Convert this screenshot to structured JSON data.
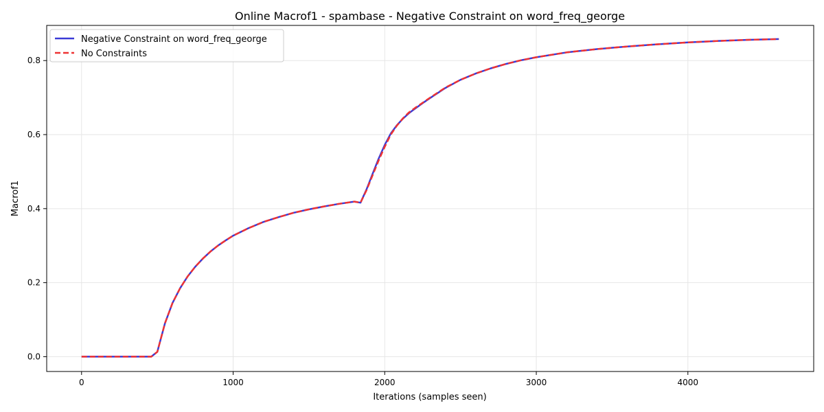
{
  "chart_data": {
    "type": "line",
    "title": "Online Macrof1 - spambase - Negative Constraint on word_freq_george",
    "xlabel": "Iterations (samples seen)",
    "ylabel": "Macrof1",
    "xlim": [
      -230,
      4830
    ],
    "ylim": [
      -0.04,
      0.895
    ],
    "xticks": [
      0,
      1000,
      2000,
      3000,
      4000
    ],
    "yticks": [
      0.0,
      0.2,
      0.4,
      0.6,
      0.8
    ],
    "xtick_labels": [
      "0",
      "1000",
      "2000",
      "3000",
      "4000"
    ],
    "ytick_labels": [
      "0.0",
      "0.2",
      "0.4",
      "0.6",
      "0.8"
    ],
    "grid": true,
    "legend_position": "top-left",
    "series": [
      {
        "name": "Negative Constraint on word_freq_george",
        "color": "#3a3ad6",
        "style": "solid",
        "x": [
          0,
          100,
          200,
          300,
          400,
          460,
          500,
          550,
          600,
          650,
          700,
          750,
          800,
          850,
          900,
          950,
          1000,
          1100,
          1200,
          1300,
          1400,
          1500,
          1600,
          1700,
          1800,
          1840,
          1880,
          1920,
          1960,
          2000,
          2040,
          2080,
          2120,
          2160,
          2200,
          2250,
          2300,
          2400,
          2500,
          2600,
          2700,
          2800,
          2900,
          3000,
          3200,
          3400,
          3600,
          3800,
          4000,
          4200,
          4400,
          4600
        ],
        "y": [
          0.0,
          0.0,
          0.0,
          0.0,
          0.0,
          0.0,
          0.013,
          0.09,
          0.145,
          0.185,
          0.217,
          0.243,
          0.265,
          0.284,
          0.3,
          0.314,
          0.327,
          0.347,
          0.364,
          0.377,
          0.389,
          0.398,
          0.406,
          0.413,
          0.419,
          0.416,
          0.452,
          0.494,
          0.535,
          0.572,
          0.603,
          0.625,
          0.643,
          0.658,
          0.67,
          0.685,
          0.699,
          0.726,
          0.748,
          0.765,
          0.779,
          0.791,
          0.801,
          0.809,
          0.822,
          0.831,
          0.838,
          0.844,
          0.849,
          0.853,
          0.856,
          0.858
        ]
      },
      {
        "name": "No Constraints",
        "color": "#ee3333",
        "style": "dashed",
        "x": [
          0,
          100,
          200,
          300,
          400,
          460,
          500,
          550,
          600,
          650,
          700,
          750,
          800,
          850,
          900,
          950,
          1000,
          1100,
          1200,
          1300,
          1400,
          1500,
          1600,
          1700,
          1800,
          1840,
          1880,
          1920,
          1960,
          2000,
          2040,
          2080,
          2120,
          2160,
          2200,
          2250,
          2300,
          2400,
          2500,
          2600,
          2700,
          2800,
          2900,
          3000,
          3200,
          3400,
          3600,
          3800,
          4000,
          4200,
          4400,
          4600
        ],
        "y": [
          0.0,
          0.0,
          0.0,
          0.0,
          0.0,
          0.0,
          0.013,
          0.09,
          0.145,
          0.185,
          0.217,
          0.243,
          0.265,
          0.284,
          0.3,
          0.314,
          0.327,
          0.347,
          0.364,
          0.377,
          0.389,
          0.398,
          0.406,
          0.413,
          0.419,
          0.416,
          0.45,
          0.49,
          0.53,
          0.567,
          0.6,
          0.624,
          0.644,
          0.66,
          0.672,
          0.686,
          0.7,
          0.727,
          0.748,
          0.765,
          0.779,
          0.791,
          0.801,
          0.809,
          0.822,
          0.831,
          0.838,
          0.844,
          0.849,
          0.853,
          0.856,
          0.858
        ]
      }
    ]
  }
}
